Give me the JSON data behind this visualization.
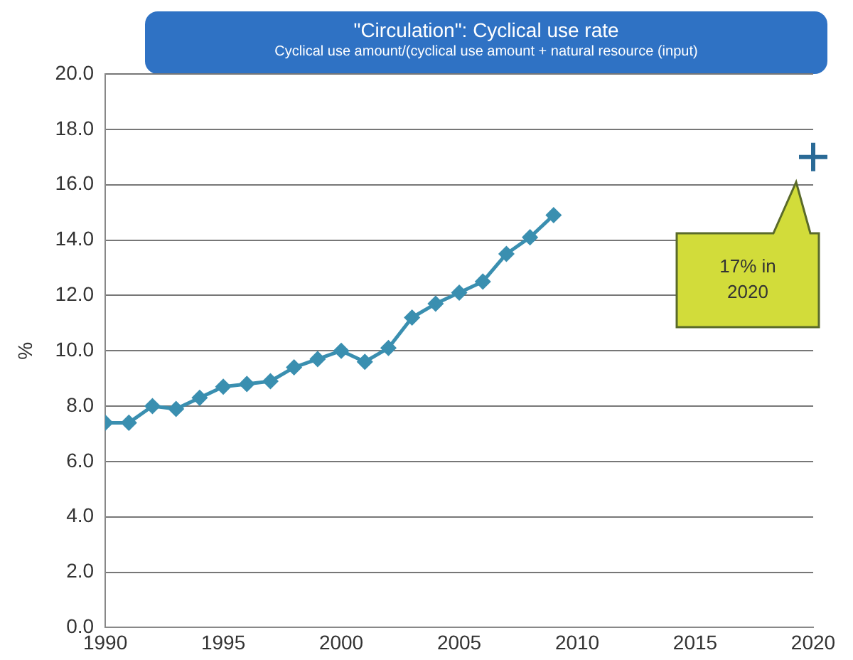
{
  "chart_data": {
    "type": "line",
    "title": "\"Circulation\":  Cyclical use rate",
    "subtitle": "Cyclical use amount/(cyclical use amount + natural resource (input)",
    "ylabel": "%",
    "series": [
      {
        "color": "#3a8fb0",
        "marker": "diamond",
        "x": [
          1990,
          1991,
          1992,
          1993,
          1994,
          1995,
          1996,
          1997,
          1998,
          1999,
          2000,
          2001,
          2002,
          2003,
          2004,
          2005,
          2006,
          2007,
          2008,
          2009
        ],
        "values": [
          7.4,
          7.4,
          8.0,
          7.9,
          8.3,
          8.7,
          8.8,
          8.9,
          9.4,
          9.7,
          10.0,
          9.6,
          10.1,
          11.2,
          11.7,
          12.1,
          12.5,
          13.5,
          14.1,
          14.9
        ]
      },
      {
        "type": "scatter",
        "color": "#2a6a96",
        "marker": "cross",
        "x": [
          2020
        ],
        "values": [
          17
        ]
      }
    ],
    "xlim": [
      1990,
      2020
    ],
    "xticks": [
      1990,
      1995,
      2000,
      2005,
      2010,
      2015,
      2020
    ],
    "ylim": [
      0,
      20
    ],
    "yticks": [
      {
        "value": 0,
        "label": "0.0"
      },
      {
        "value": 2,
        "label": "2.0"
      },
      {
        "value": 4,
        "label": "4.0"
      },
      {
        "value": 6,
        "label": "6.0"
      },
      {
        "value": 8,
        "label": "8.0"
      },
      {
        "value": 10,
        "label": "10.0"
      },
      {
        "value": 12,
        "label": "12.0"
      },
      {
        "value": 14,
        "label": "14.0"
      },
      {
        "value": 16,
        "label": "16.0"
      },
      {
        "value": 18,
        "label": "18.0"
      },
      {
        "value": 20,
        "label": "20.0"
      }
    ],
    "grid": "y",
    "legend": false,
    "annotations": [
      "17% in 2020"
    ]
  }
}
